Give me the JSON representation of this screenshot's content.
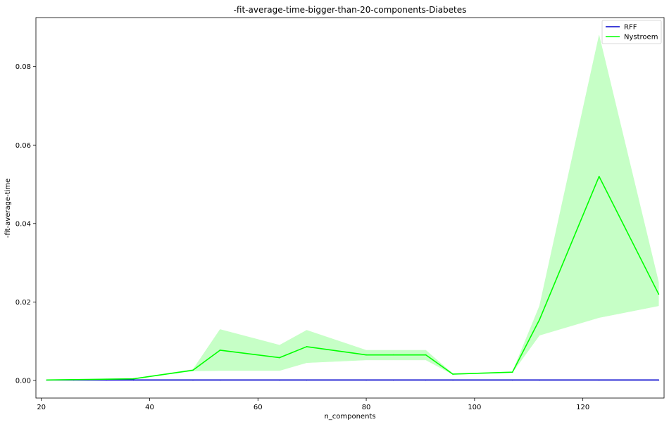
{
  "chart_data": {
    "type": "line",
    "title": "-fit-average-time-bigger-than-20-components-Diabetes",
    "xlabel": "n_components",
    "ylabel": "-fit-average-time",
    "xlim": [
      19,
      135
    ],
    "ylim": [
      -0.0045,
      0.0925
    ],
    "xticks": [
      20,
      40,
      60,
      80,
      100,
      120
    ],
    "yticks": [
      0.0,
      0.02,
      0.04,
      0.06,
      0.08
    ],
    "ytick_labels": [
      "0.00",
      "0.02",
      "0.04",
      "0.06",
      "0.08"
    ],
    "grid": false,
    "legend_position": "top-right",
    "x": [
      21,
      26,
      32,
      37,
      48,
      53,
      64,
      69,
      80,
      85,
      91,
      96,
      107,
      112,
      123,
      134
    ],
    "series": [
      {
        "name": "RFF",
        "color": "#0000cc",
        "values": [
          0.0001,
          0.0001,
          0.0001,
          0.0001,
          0.0001,
          0.0001,
          0.0001,
          0.0001,
          0.0001,
          0.0001,
          0.0001,
          0.0001,
          0.0001,
          0.0001,
          0.0001,
          0.0001
        ]
      },
      {
        "name": "Nystroem",
        "color": "#00ff00",
        "band_color": "#c6ffc6",
        "values": [
          0.0001,
          0.0002,
          0.0003,
          0.0004,
          0.0026,
          0.0077,
          0.0058,
          0.0086,
          0.0065,
          0.0065,
          0.0065,
          0.0016,
          0.0021,
          0.0155,
          0.052,
          0.022
        ],
        "lower": [
          0.0001,
          0.0002,
          0.0003,
          0.0004,
          0.0024,
          0.0025,
          0.0025,
          0.0045,
          0.0052,
          0.0052,
          0.0052,
          0.0015,
          0.002,
          0.0115,
          0.016,
          0.019
        ],
        "upper": [
          0.0002,
          0.0003,
          0.0004,
          0.0005,
          0.0028,
          0.013,
          0.009,
          0.0128,
          0.0077,
          0.0077,
          0.0077,
          0.0017,
          0.0022,
          0.019,
          0.088,
          0.025
        ]
      }
    ]
  }
}
